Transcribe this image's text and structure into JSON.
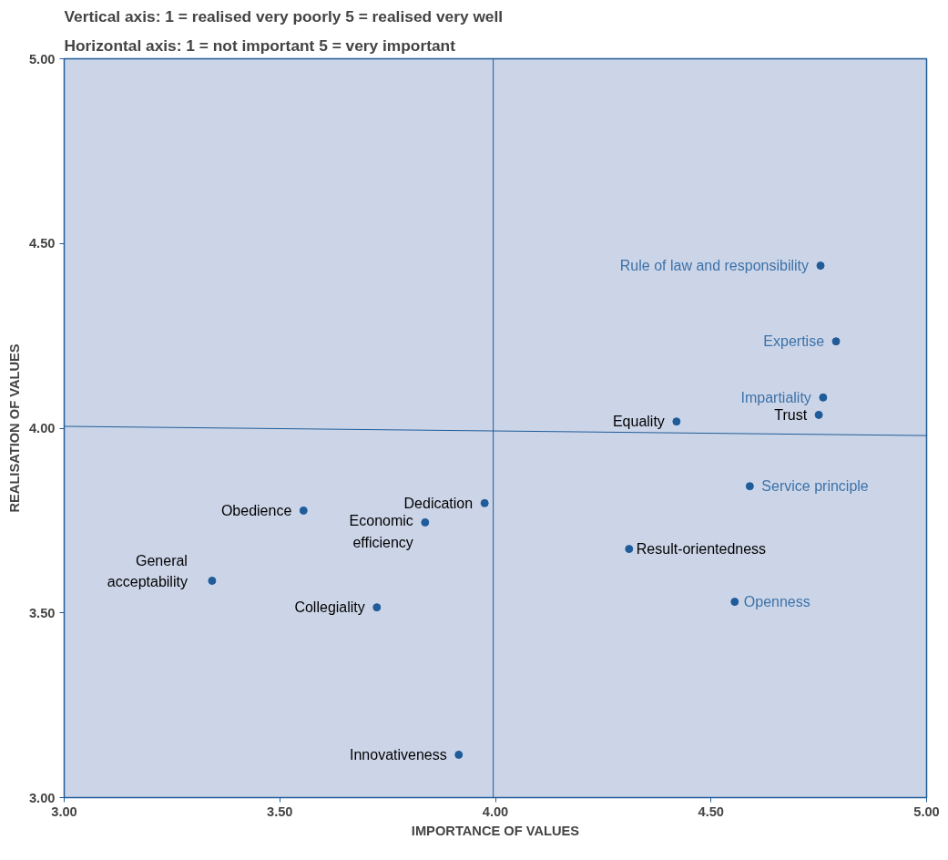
{
  "chart_data": {
    "type": "scatter",
    "title": "Vertical axis: 1 = realised very poorly     5 = realised very well",
    "subtitle": "Horizontal axis: 1 = not important     5 = very important",
    "xlabel": "IMPORTANCE OF VALUES",
    "ylabel": "REALISATION OF VALUES",
    "xlim": [
      3,
      5
    ],
    "ylim": [
      3,
      5
    ],
    "xticks": [
      {
        "value": 3,
        "label": "3.00"
      },
      {
        "value": 3.5,
        "label": "3.50"
      },
      {
        "value": 4,
        "label": "4.00"
      },
      {
        "value": 4.5,
        "label": "4.50"
      },
      {
        "value": 5,
        "label": "5.00"
      }
    ],
    "yticks": [
      {
        "value": 3,
        "label": "3.00"
      },
      {
        "value": 3.5,
        "label": "3.50"
      },
      {
        "value": 4,
        "label": "4.00"
      },
      {
        "value": 4.5,
        "label": "4.50"
      },
      {
        "value": 5,
        "label": "5.00"
      }
    ],
    "grid": false,
    "series": [
      {
        "color": "#1f5c99",
        "marker": "circle",
        "x": [
          4.754,
          4.79,
          4.76,
          4.75,
          4.42,
          4.59,
          4.31,
          4.555,
          3.975,
          3.837,
          3.555,
          3.343,
          3.725,
          3.915
        ],
        "values": [
          4.44,
          4.235,
          4.083,
          4.036,
          4.018,
          3.843,
          3.673,
          3.53,
          3.797,
          3.745,
          3.777,
          3.587,
          3.515,
          3.116
        ]
      },
      {
        "type": "line",
        "color": "#1f5c99",
        "marker": "none",
        "x": [
          3,
          5
        ],
        "values": [
          4.005,
          3.98
        ]
      }
    ],
    "ref_lines": [
      {
        "axis": "x",
        "value": 3.995,
        "color": "#1f5c99"
      }
    ],
    "annotations": [
      {
        "text": "Rule of law and responsibility",
        "x": 4.754,
        "y": 4.44
      },
      {
        "text": "Expertise",
        "x": 4.79,
        "y": 4.235
      },
      {
        "text": "Impartiality",
        "x": 4.76,
        "y": 4.083
      },
      {
        "text": "Trust",
        "x": 4.75,
        "y": 4.036
      },
      {
        "text": "Equality",
        "x": 4.42,
        "y": 4.018
      },
      {
        "text": "Service principle",
        "x": 4.59,
        "y": 3.843
      },
      {
        "text": "Result-orientedness",
        "x": 4.31,
        "y": 3.673
      },
      {
        "text": "Openness",
        "x": 4.555,
        "y": 3.53
      },
      {
        "text": "Dedication",
        "x": 3.975,
        "y": 3.797
      },
      {
        "text": "Economic efficiency",
        "x": 3.837,
        "y": 3.745
      },
      {
        "text": "Obedience",
        "x": 3.555,
        "y": 3.777
      },
      {
        "text": "General acceptability",
        "x": 3.343,
        "y": 3.587
      },
      {
        "text": "Collegiality",
        "x": 3.725,
        "y": 3.515
      },
      {
        "text": "Innovativeness",
        "x": 3.915,
        "y": 3.116
      }
    ]
  }
}
